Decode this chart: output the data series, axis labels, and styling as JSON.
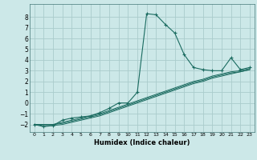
{
  "title": "",
  "xlabel": "Humidex (Indice chaleur)",
  "bg_color": "#cce8e8",
  "grid_color": "#aacccc",
  "line_color": "#1a6b60",
  "xlim": [
    -0.5,
    23.5
  ],
  "ylim": [
    -2.7,
    9.2
  ],
  "xticks": [
    0,
    1,
    2,
    3,
    4,
    5,
    6,
    7,
    8,
    9,
    10,
    11,
    12,
    13,
    14,
    15,
    16,
    17,
    18,
    19,
    20,
    21,
    22,
    23
  ],
  "yticks": [
    -2,
    -1,
    0,
    1,
    2,
    3,
    4,
    5,
    6,
    7,
    8
  ],
  "series": [
    {
      "x": [
        0,
        1,
        2,
        3,
        4,
        5,
        6,
        7,
        8,
        9,
        10,
        11,
        12,
        13,
        14,
        15,
        16,
        17,
        18,
        19,
        20,
        21,
        22,
        23
      ],
      "y": [
        -2.0,
        -2.2,
        -2.1,
        -1.6,
        -1.4,
        -1.3,
        -1.2,
        -0.9,
        -0.5,
        0.0,
        0.0,
        1.0,
        8.3,
        8.2,
        7.3,
        6.5,
        4.5,
        3.3,
        3.1,
        3.0,
        3.0,
        4.2,
        3.1,
        3.3
      ],
      "marker": true
    },
    {
      "x": [
        0,
        1,
        2,
        3,
        4,
        5,
        6,
        7,
        8,
        9,
        10,
        11,
        12,
        13,
        14,
        15,
        16,
        17,
        18,
        19,
        20,
        21,
        22,
        23
      ],
      "y": [
        -2.0,
        -2.0,
        -2.0,
        -1.8,
        -1.6,
        -1.4,
        -1.2,
        -1.0,
        -0.7,
        -0.4,
        -0.1,
        0.2,
        0.5,
        0.8,
        1.1,
        1.4,
        1.7,
        2.0,
        2.2,
        2.5,
        2.7,
        2.9,
        3.0,
        3.2
      ],
      "marker": false
    },
    {
      "x": [
        0,
        1,
        2,
        3,
        4,
        5,
        6,
        7,
        8,
        9,
        10,
        11,
        12,
        13,
        14,
        15,
        16,
        17,
        18,
        19,
        20,
        21,
        22,
        23
      ],
      "y": [
        -2.0,
        -2.0,
        -2.0,
        -1.9,
        -1.7,
        -1.5,
        -1.3,
        -1.1,
        -0.8,
        -0.5,
        -0.2,
        0.1,
        0.4,
        0.7,
        1.0,
        1.3,
        1.6,
        1.9,
        2.1,
        2.4,
        2.6,
        2.8,
        2.9,
        3.1
      ],
      "marker": false
    },
    {
      "x": [
        0,
        1,
        2,
        3,
        4,
        5,
        6,
        7,
        8,
        9,
        10,
        11,
        12,
        13,
        14,
        15,
        16,
        17,
        18,
        19,
        20,
        21,
        22,
        23
      ],
      "y": [
        -2.0,
        -2.1,
        -2.1,
        -2.0,
        -1.8,
        -1.6,
        -1.4,
        -1.2,
        -0.9,
        -0.6,
        -0.3,
        0.0,
        0.3,
        0.6,
        0.9,
        1.2,
        1.5,
        1.8,
        2.0,
        2.3,
        2.5,
        2.7,
        2.9,
        3.1
      ],
      "marker": false
    }
  ]
}
